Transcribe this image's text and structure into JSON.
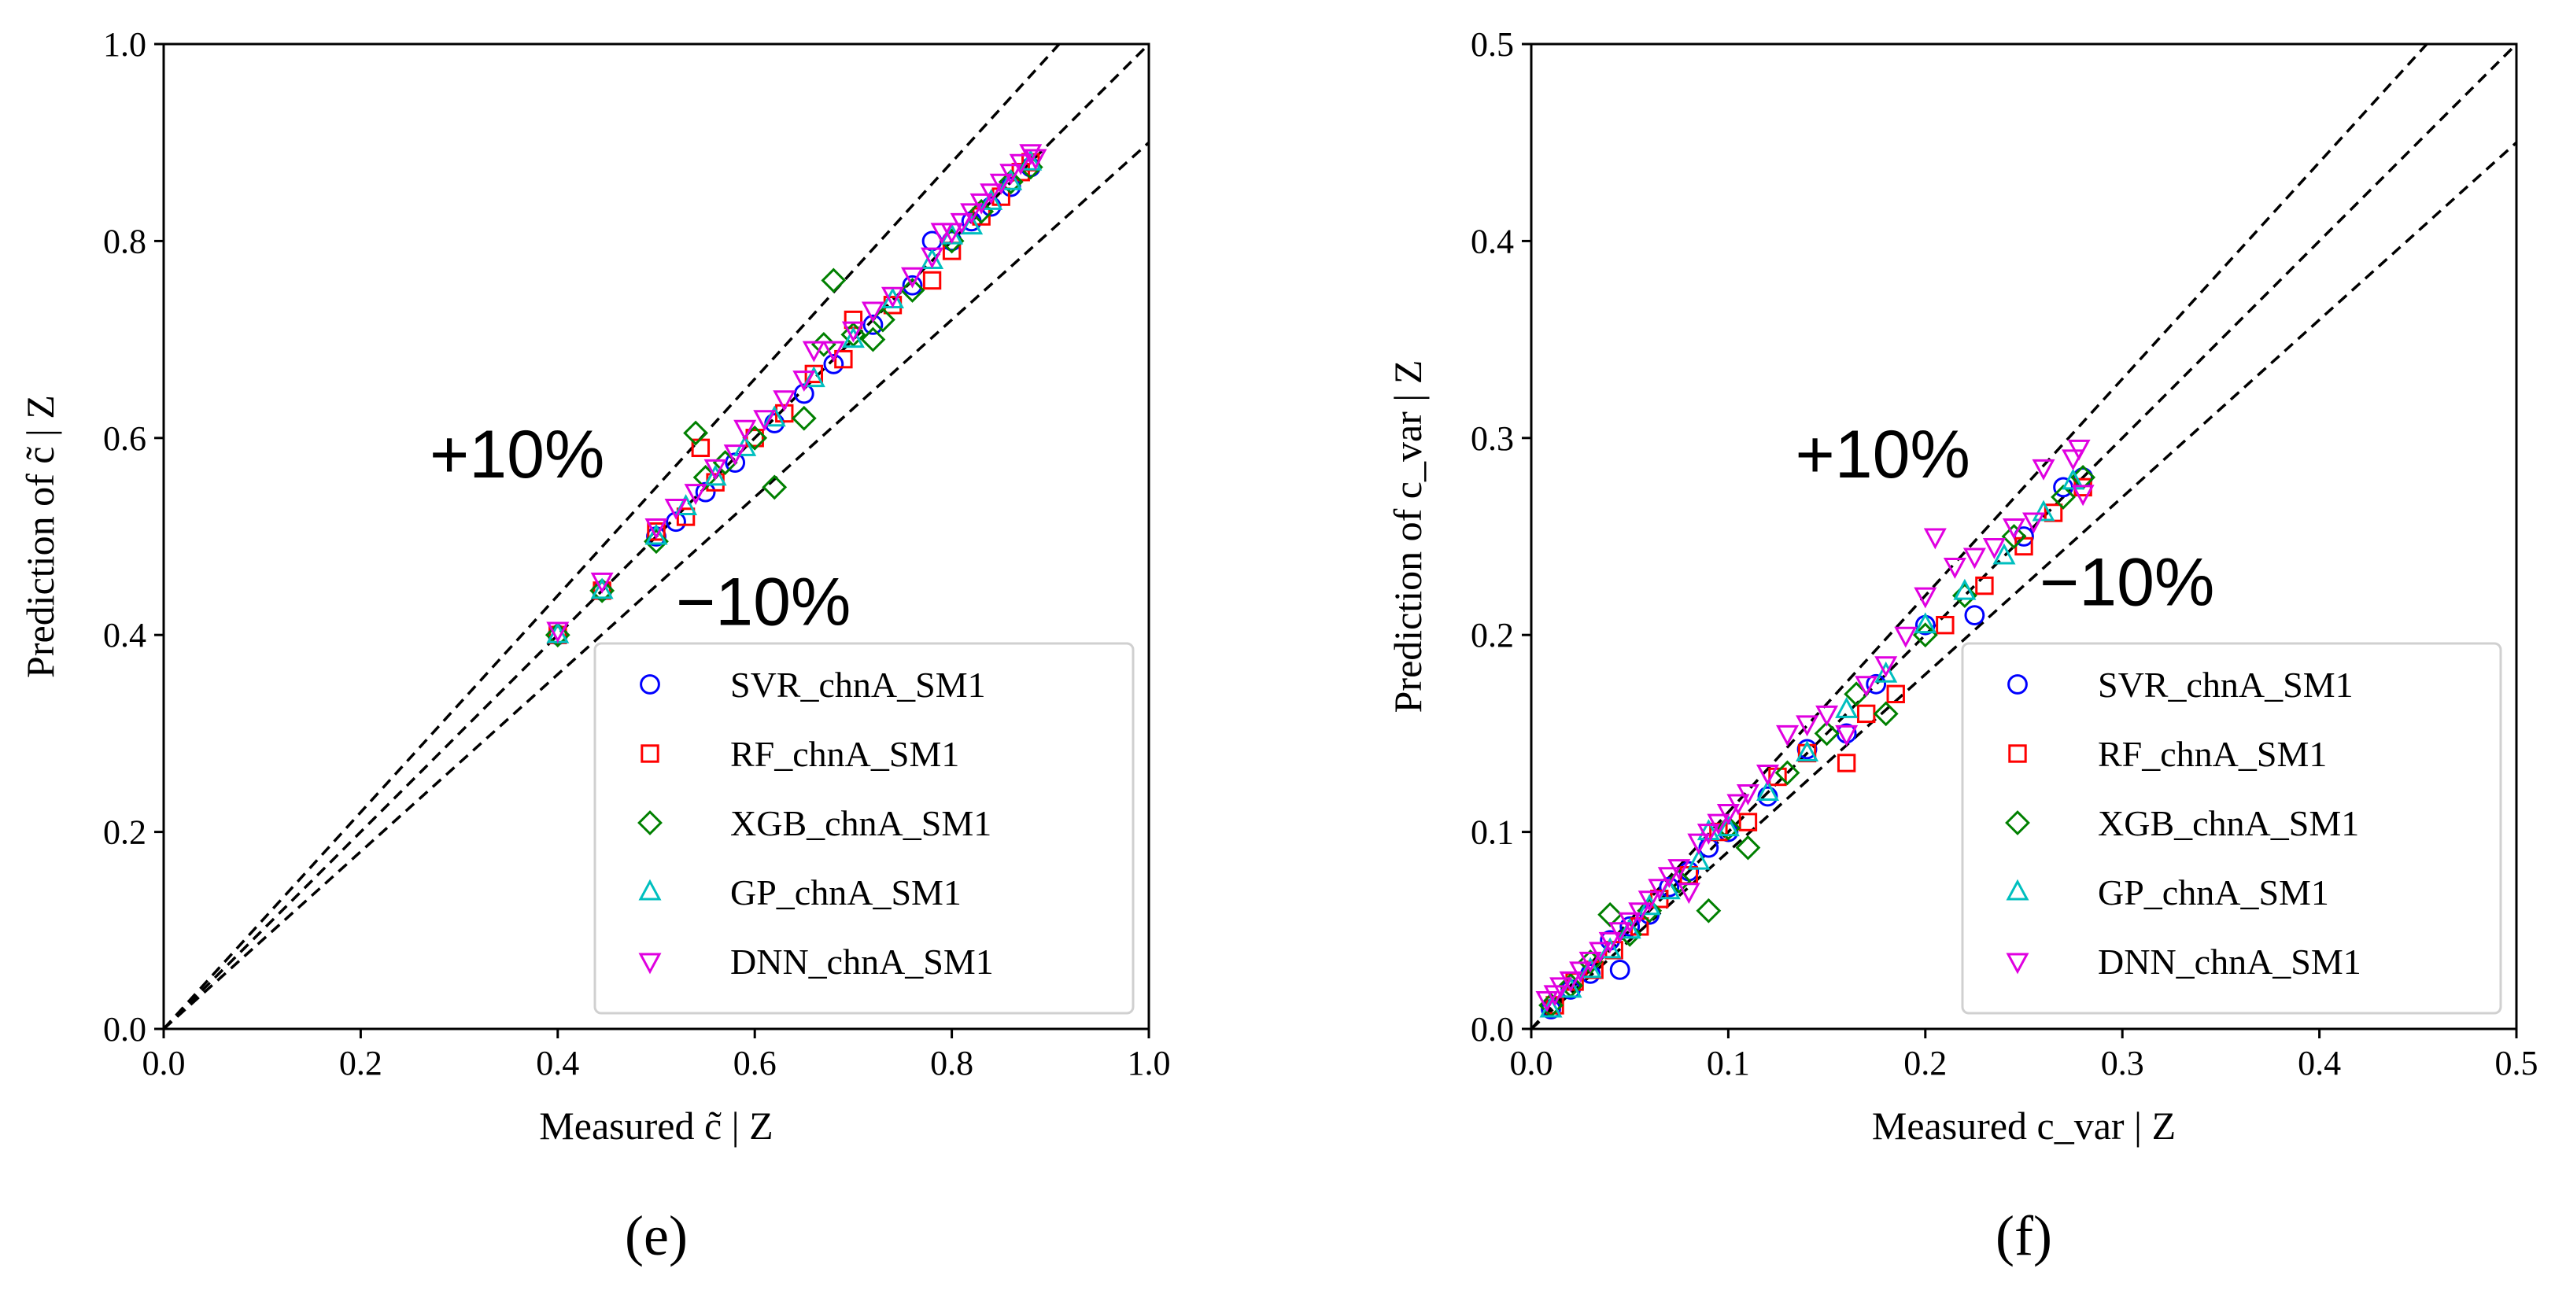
{
  "colors": {
    "SVR": "#0000ff",
    "RF": "#ff0000",
    "XGB": "#008000",
    "GP": "#00bfbf",
    "DNN": "#e000e0",
    "ref_line": "#000000"
  },
  "chart_data": [
    {
      "type": "scatter",
      "panel_label": "(e)",
      "xlabel": "Measured c̃ | Z",
      "ylabel": "Prediction of c̃ | Z",
      "xlim": [
        0.0,
        1.0
      ],
      "ylim": [
        0.0,
        1.0
      ],
      "xticks": [
        "0.0",
        "0.2",
        "0.4",
        "0.6",
        "0.8",
        "1.0"
      ],
      "yticks": [
        "0.0",
        "0.2",
        "0.4",
        "0.6",
        "0.8",
        "1.0"
      ],
      "reference_lines": [
        {
          "name": "plus-10",
          "slope": 1.1
        },
        {
          "name": "identity",
          "slope": 1.0
        },
        {
          "name": "minus-10",
          "slope": 0.9
        }
      ],
      "annotations": [
        {
          "text": "+10%",
          "x": 0.27,
          "y": 0.56
        },
        {
          "text": "−10%",
          "x": 0.52,
          "y": 0.41
        }
      ],
      "legend": [
        "SVR_chnA_SM1",
        "RF_chnA_SM1",
        "XGB_chnA_SM1",
        "GP_chnA_SM1",
        "DNN_chnA_SM1"
      ],
      "legend_position": "lower right",
      "series": [
        {
          "name": "SVR_chnA_SM1",
          "marker": "circle",
          "points": [
            [
              0.4,
              0.4
            ],
            [
              0.445,
              0.445
            ],
            [
              0.5,
              0.5
            ],
            [
              0.52,
              0.515
            ],
            [
              0.55,
              0.545
            ],
            [
              0.58,
              0.575
            ],
            [
              0.62,
              0.615
            ],
            [
              0.65,
              0.645
            ],
            [
              0.68,
              0.675
            ],
            [
              0.72,
              0.715
            ],
            [
              0.76,
              0.755
            ],
            [
              0.78,
              0.8
            ],
            [
              0.8,
              0.8
            ],
            [
              0.82,
              0.82
            ],
            [
              0.84,
              0.835
            ],
            [
              0.86,
              0.855
            ],
            [
              0.88,
              0.875
            ]
          ]
        },
        {
          "name": "RF_chnA_SM1",
          "marker": "square",
          "points": [
            [
              0.4,
              0.4
            ],
            [
              0.445,
              0.445
            ],
            [
              0.5,
              0.505
            ],
            [
              0.53,
              0.52
            ],
            [
              0.545,
              0.59
            ],
            [
              0.56,
              0.555
            ],
            [
              0.6,
              0.6
            ],
            [
              0.63,
              0.625
            ],
            [
              0.66,
              0.665
            ],
            [
              0.69,
              0.68
            ],
            [
              0.7,
              0.72
            ],
            [
              0.74,
              0.735
            ],
            [
              0.78,
              0.76
            ],
            [
              0.8,
              0.79
            ],
            [
              0.83,
              0.825
            ],
            [
              0.85,
              0.845
            ],
            [
              0.87,
              0.87
            ],
            [
              0.88,
              0.88
            ]
          ]
        },
        {
          "name": "XGB_chnA_SM1",
          "marker": "diamond",
          "points": [
            [
              0.4,
              0.4
            ],
            [
              0.445,
              0.445
            ],
            [
              0.5,
              0.495
            ],
            [
              0.54,
              0.605
            ],
            [
              0.55,
              0.56
            ],
            [
              0.57,
              0.575
            ],
            [
              0.6,
              0.6
            ],
            [
              0.62,
              0.55
            ],
            [
              0.65,
              0.62
            ],
            [
              0.67,
              0.695
            ],
            [
              0.68,
              0.76
            ],
            [
              0.7,
              0.705
            ],
            [
              0.72,
              0.7
            ],
            [
              0.73,
              0.72
            ],
            [
              0.76,
              0.75
            ],
            [
              0.8,
              0.8
            ],
            [
              0.83,
              0.83
            ],
            [
              0.86,
              0.86
            ],
            [
              0.88,
              0.875
            ]
          ]
        },
        {
          "name": "GP_chnA_SM1",
          "marker": "triangle-up",
          "points": [
            [
              0.4,
              0.4
            ],
            [
              0.445,
              0.445
            ],
            [
              0.5,
              0.5
            ],
            [
              0.53,
              0.53
            ],
            [
              0.56,
              0.56
            ],
            [
              0.59,
              0.59
            ],
            [
              0.62,
              0.62
            ],
            [
              0.66,
              0.66
            ],
            [
              0.7,
              0.7
            ],
            [
              0.74,
              0.74
            ],
            [
              0.78,
              0.78
            ],
            [
              0.8,
              0.805
            ],
            [
              0.82,
              0.815
            ],
            [
              0.84,
              0.84
            ],
            [
              0.86,
              0.86
            ],
            [
              0.88,
              0.88
            ]
          ]
        },
        {
          "name": "DNN_chnA_SM1",
          "marker": "triangle-down",
          "points": [
            [
              0.4,
              0.405
            ],
            [
              0.445,
              0.455
            ],
            [
              0.5,
              0.51
            ],
            [
              0.52,
              0.53
            ],
            [
              0.54,
              0.545
            ],
            [
              0.56,
              0.57
            ],
            [
              0.58,
              0.585
            ],
            [
              0.59,
              0.61
            ],
            [
              0.61,
              0.62
            ],
            [
              0.63,
              0.64
            ],
            [
              0.65,
              0.66
            ],
            [
              0.66,
              0.69
            ],
            [
              0.68,
              0.69
            ],
            [
              0.7,
              0.71
            ],
            [
              0.72,
              0.73
            ],
            [
              0.74,
              0.745
            ],
            [
              0.76,
              0.765
            ],
            [
              0.78,
              0.785
            ],
            [
              0.79,
              0.81
            ],
            [
              0.8,
              0.81
            ],
            [
              0.81,
              0.82
            ],
            [
              0.82,
              0.83
            ],
            [
              0.83,
              0.84
            ],
            [
              0.84,
              0.85
            ],
            [
              0.85,
              0.86
            ],
            [
              0.86,
              0.87
            ],
            [
              0.87,
              0.88
            ],
            [
              0.88,
              0.89
            ],
            [
              0.885,
              0.885
            ]
          ]
        }
      ]
    },
    {
      "type": "scatter",
      "panel_label": "(f)",
      "xlabel": "Measured c_var | Z",
      "ylabel": "Prediction of c_var | Z",
      "xlim": [
        0.0,
        0.5
      ],
      "ylim": [
        0.0,
        0.5
      ],
      "xticks": [
        "0.0",
        "0.1",
        "0.2",
        "0.3",
        "0.4",
        "0.5"
      ],
      "yticks": [
        "0.0",
        "0.1",
        "0.2",
        "0.3",
        "0.4",
        "0.5"
      ],
      "reference_lines": [
        {
          "name": "plus-10",
          "slope": 1.1
        },
        {
          "name": "identity",
          "slope": 1.0
        },
        {
          "name": "minus-10",
          "slope": 0.9
        }
      ],
      "annotations": [
        {
          "text": "+10%",
          "x": 0.134,
          "y": 0.28
        },
        {
          "text": "−10%",
          "x": 0.258,
          "y": 0.215
        }
      ],
      "legend": [
        "SVR_chnA_SM1",
        "RF_chnA_SM1",
        "XGB_chnA_SM1",
        "GP_chnA_SM1",
        "DNN_chnA_SM1"
      ],
      "legend_position": "lower right",
      "series": [
        {
          "name": "SVR_chnA_SM1",
          "marker": "circle",
          "points": [
            [
              0.01,
              0.01
            ],
            [
              0.02,
              0.02
            ],
            [
              0.03,
              0.028
            ],
            [
              0.04,
              0.045
            ],
            [
              0.045,
              0.03
            ],
            [
              0.05,
              0.052
            ],
            [
              0.06,
              0.058
            ],
            [
              0.07,
              0.072
            ],
            [
              0.08,
              0.08
            ],
            [
              0.09,
              0.092
            ],
            [
              0.1,
              0.1
            ],
            [
              0.12,
              0.118
            ],
            [
              0.14,
              0.142
            ],
            [
              0.16,
              0.15
            ],
            [
              0.175,
              0.175
            ],
            [
              0.2,
              0.205
            ],
            [
              0.225,
              0.21
            ],
            [
              0.25,
              0.25
            ],
            [
              0.27,
              0.275
            ],
            [
              0.28,
              0.28
            ]
          ]
        },
        {
          "name": "RF_chnA_SM1",
          "marker": "square",
          "points": [
            [
              0.012,
              0.012
            ],
            [
              0.022,
              0.024
            ],
            [
              0.032,
              0.03
            ],
            [
              0.042,
              0.04
            ],
            [
              0.055,
              0.052
            ],
            [
              0.065,
              0.066
            ],
            [
              0.08,
              0.078
            ],
            [
              0.095,
              0.1
            ],
            [
              0.11,
              0.105
            ],
            [
              0.125,
              0.128
            ],
            [
              0.14,
              0.14
            ],
            [
              0.16,
              0.135
            ],
            [
              0.17,
              0.16
            ],
            [
              0.185,
              0.17
            ],
            [
              0.21,
              0.205
            ],
            [
              0.23,
              0.225
            ],
            [
              0.25,
              0.245
            ],
            [
              0.265,
              0.262
            ],
            [
              0.28,
              0.275
            ]
          ]
        },
        {
          "name": "XGB_chnA_SM1",
          "marker": "diamond",
          "points": [
            [
              0.01,
              0.012
            ],
            [
              0.02,
              0.022
            ],
            [
              0.03,
              0.034
            ],
            [
              0.04,
              0.058
            ],
            [
              0.05,
              0.048
            ],
            [
              0.06,
              0.06
            ],
            [
              0.075,
              0.075
            ],
            [
              0.09,
              0.06
            ],
            [
              0.1,
              0.102
            ],
            [
              0.11,
              0.092
            ],
            [
              0.13,
              0.13
            ],
            [
              0.15,
              0.15
            ],
            [
              0.165,
              0.17
            ],
            [
              0.18,
              0.16
            ],
            [
              0.2,
              0.2
            ],
            [
              0.22,
              0.22
            ],
            [
              0.245,
              0.25
            ],
            [
              0.27,
              0.27
            ],
            [
              0.28,
              0.28
            ]
          ]
        },
        {
          "name": "GP_chnA_SM1",
          "marker": "triangle-up",
          "points": [
            [
              0.01,
              0.01
            ],
            [
              0.02,
              0.02
            ],
            [
              0.03,
              0.03
            ],
            [
              0.04,
              0.04
            ],
            [
              0.05,
              0.05
            ],
            [
              0.06,
              0.062
            ],
            [
              0.07,
              0.07
            ],
            [
              0.085,
              0.085
            ],
            [
              0.09,
              0.1
            ],
            [
              0.1,
              0.102
            ],
            [
              0.12,
              0.12
            ],
            [
              0.14,
              0.14
            ],
            [
              0.16,
              0.162
            ],
            [
              0.18,
              0.18
            ],
            [
              0.2,
              0.205
            ],
            [
              0.22,
              0.222
            ],
            [
              0.24,
              0.24
            ],
            [
              0.26,
              0.262
            ],
            [
              0.275,
              0.278
            ]
          ]
        },
        {
          "name": "DNN_chnA_SM1",
          "marker": "triangle-down",
          "points": [
            [
              0.008,
              0.015
            ],
            [
              0.012,
              0.018
            ],
            [
              0.015,
              0.022
            ],
            [
              0.02,
              0.025
            ],
            [
              0.025,
              0.03
            ],
            [
              0.03,
              0.035
            ],
            [
              0.035,
              0.04
            ],
            [
              0.04,
              0.045
            ],
            [
              0.045,
              0.05
            ],
            [
              0.05,
              0.055
            ],
            [
              0.055,
              0.06
            ],
            [
              0.06,
              0.066
            ],
            [
              0.065,
              0.072
            ],
            [
              0.07,
              0.078
            ],
            [
              0.075,
              0.082
            ],
            [
              0.08,
              0.07
            ],
            [
              0.085,
              0.095
            ],
            [
              0.09,
              0.1
            ],
            [
              0.095,
              0.105
            ],
            [
              0.1,
              0.11
            ],
            [
              0.105,
              0.115
            ],
            [
              0.11,
              0.12
            ],
            [
              0.12,
              0.13
            ],
            [
              0.13,
              0.15
            ],
            [
              0.14,
              0.155
            ],
            [
              0.15,
              0.16
            ],
            [
              0.16,
              0.15
            ],
            [
              0.17,
              0.175
            ],
            [
              0.18,
              0.185
            ],
            [
              0.19,
              0.2
            ],
            [
              0.2,
              0.22
            ],
            [
              0.205,
              0.25
            ],
            [
              0.215,
              0.235
            ],
            [
              0.225,
              0.24
            ],
            [
              0.235,
              0.245
            ],
            [
              0.245,
              0.255
            ],
            [
              0.255,
              0.258
            ],
            [
              0.26,
              0.285
            ],
            [
              0.275,
              0.29
            ],
            [
              0.278,
              0.295
            ],
            [
              0.28,
              0.272
            ]
          ]
        }
      ]
    }
  ]
}
